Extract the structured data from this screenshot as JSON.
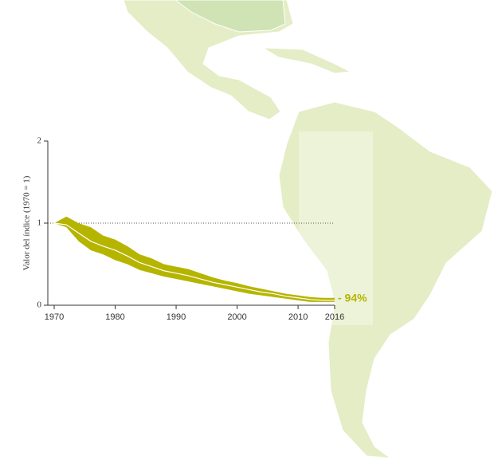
{
  "chart_data": {
    "type": "line",
    "y_label": "Valor del índice (1970 = 1)",
    "annotation": "- 94%",
    "x": [
      1970,
      1972,
      1974,
      1976,
      1978,
      1980,
      1982,
      1984,
      1986,
      1988,
      1990,
      1992,
      1994,
      1996,
      1998,
      2000,
      2002,
      2004,
      2006,
      2008,
      2010,
      2012,
      2014,
      2016
    ],
    "values": [
      1.0,
      0.98,
      0.88,
      0.78,
      0.72,
      0.67,
      0.6,
      0.52,
      0.47,
      0.42,
      0.39,
      0.36,
      0.32,
      0.28,
      0.25,
      0.22,
      0.19,
      0.16,
      0.14,
      0.11,
      0.09,
      0.07,
      0.06,
      0.06
    ],
    "upper": [
      1.0,
      1.08,
      1.0,
      0.95,
      0.85,
      0.8,
      0.72,
      0.62,
      0.57,
      0.5,
      0.47,
      0.44,
      0.39,
      0.34,
      0.3,
      0.27,
      0.23,
      0.2,
      0.17,
      0.14,
      0.12,
      0.1,
      0.09,
      0.09
    ],
    "lower": [
      1.0,
      0.95,
      0.78,
      0.67,
      0.62,
      0.55,
      0.5,
      0.43,
      0.39,
      0.35,
      0.32,
      0.29,
      0.26,
      0.23,
      0.2,
      0.17,
      0.14,
      0.12,
      0.1,
      0.08,
      0.06,
      0.04,
      0.04,
      0.04
    ],
    "line_color": "#ffffff",
    "band_color": "#b5b500",
    "reference_value": 1,
    "xlim": [
      1970,
      2016
    ],
    "xticks": [
      1970,
      1980,
      1990,
      2000,
      2010,
      2016
    ],
    "ylim": [
      0,
      2
    ],
    "yticks": [
      0,
      1,
      2
    ]
  }
}
